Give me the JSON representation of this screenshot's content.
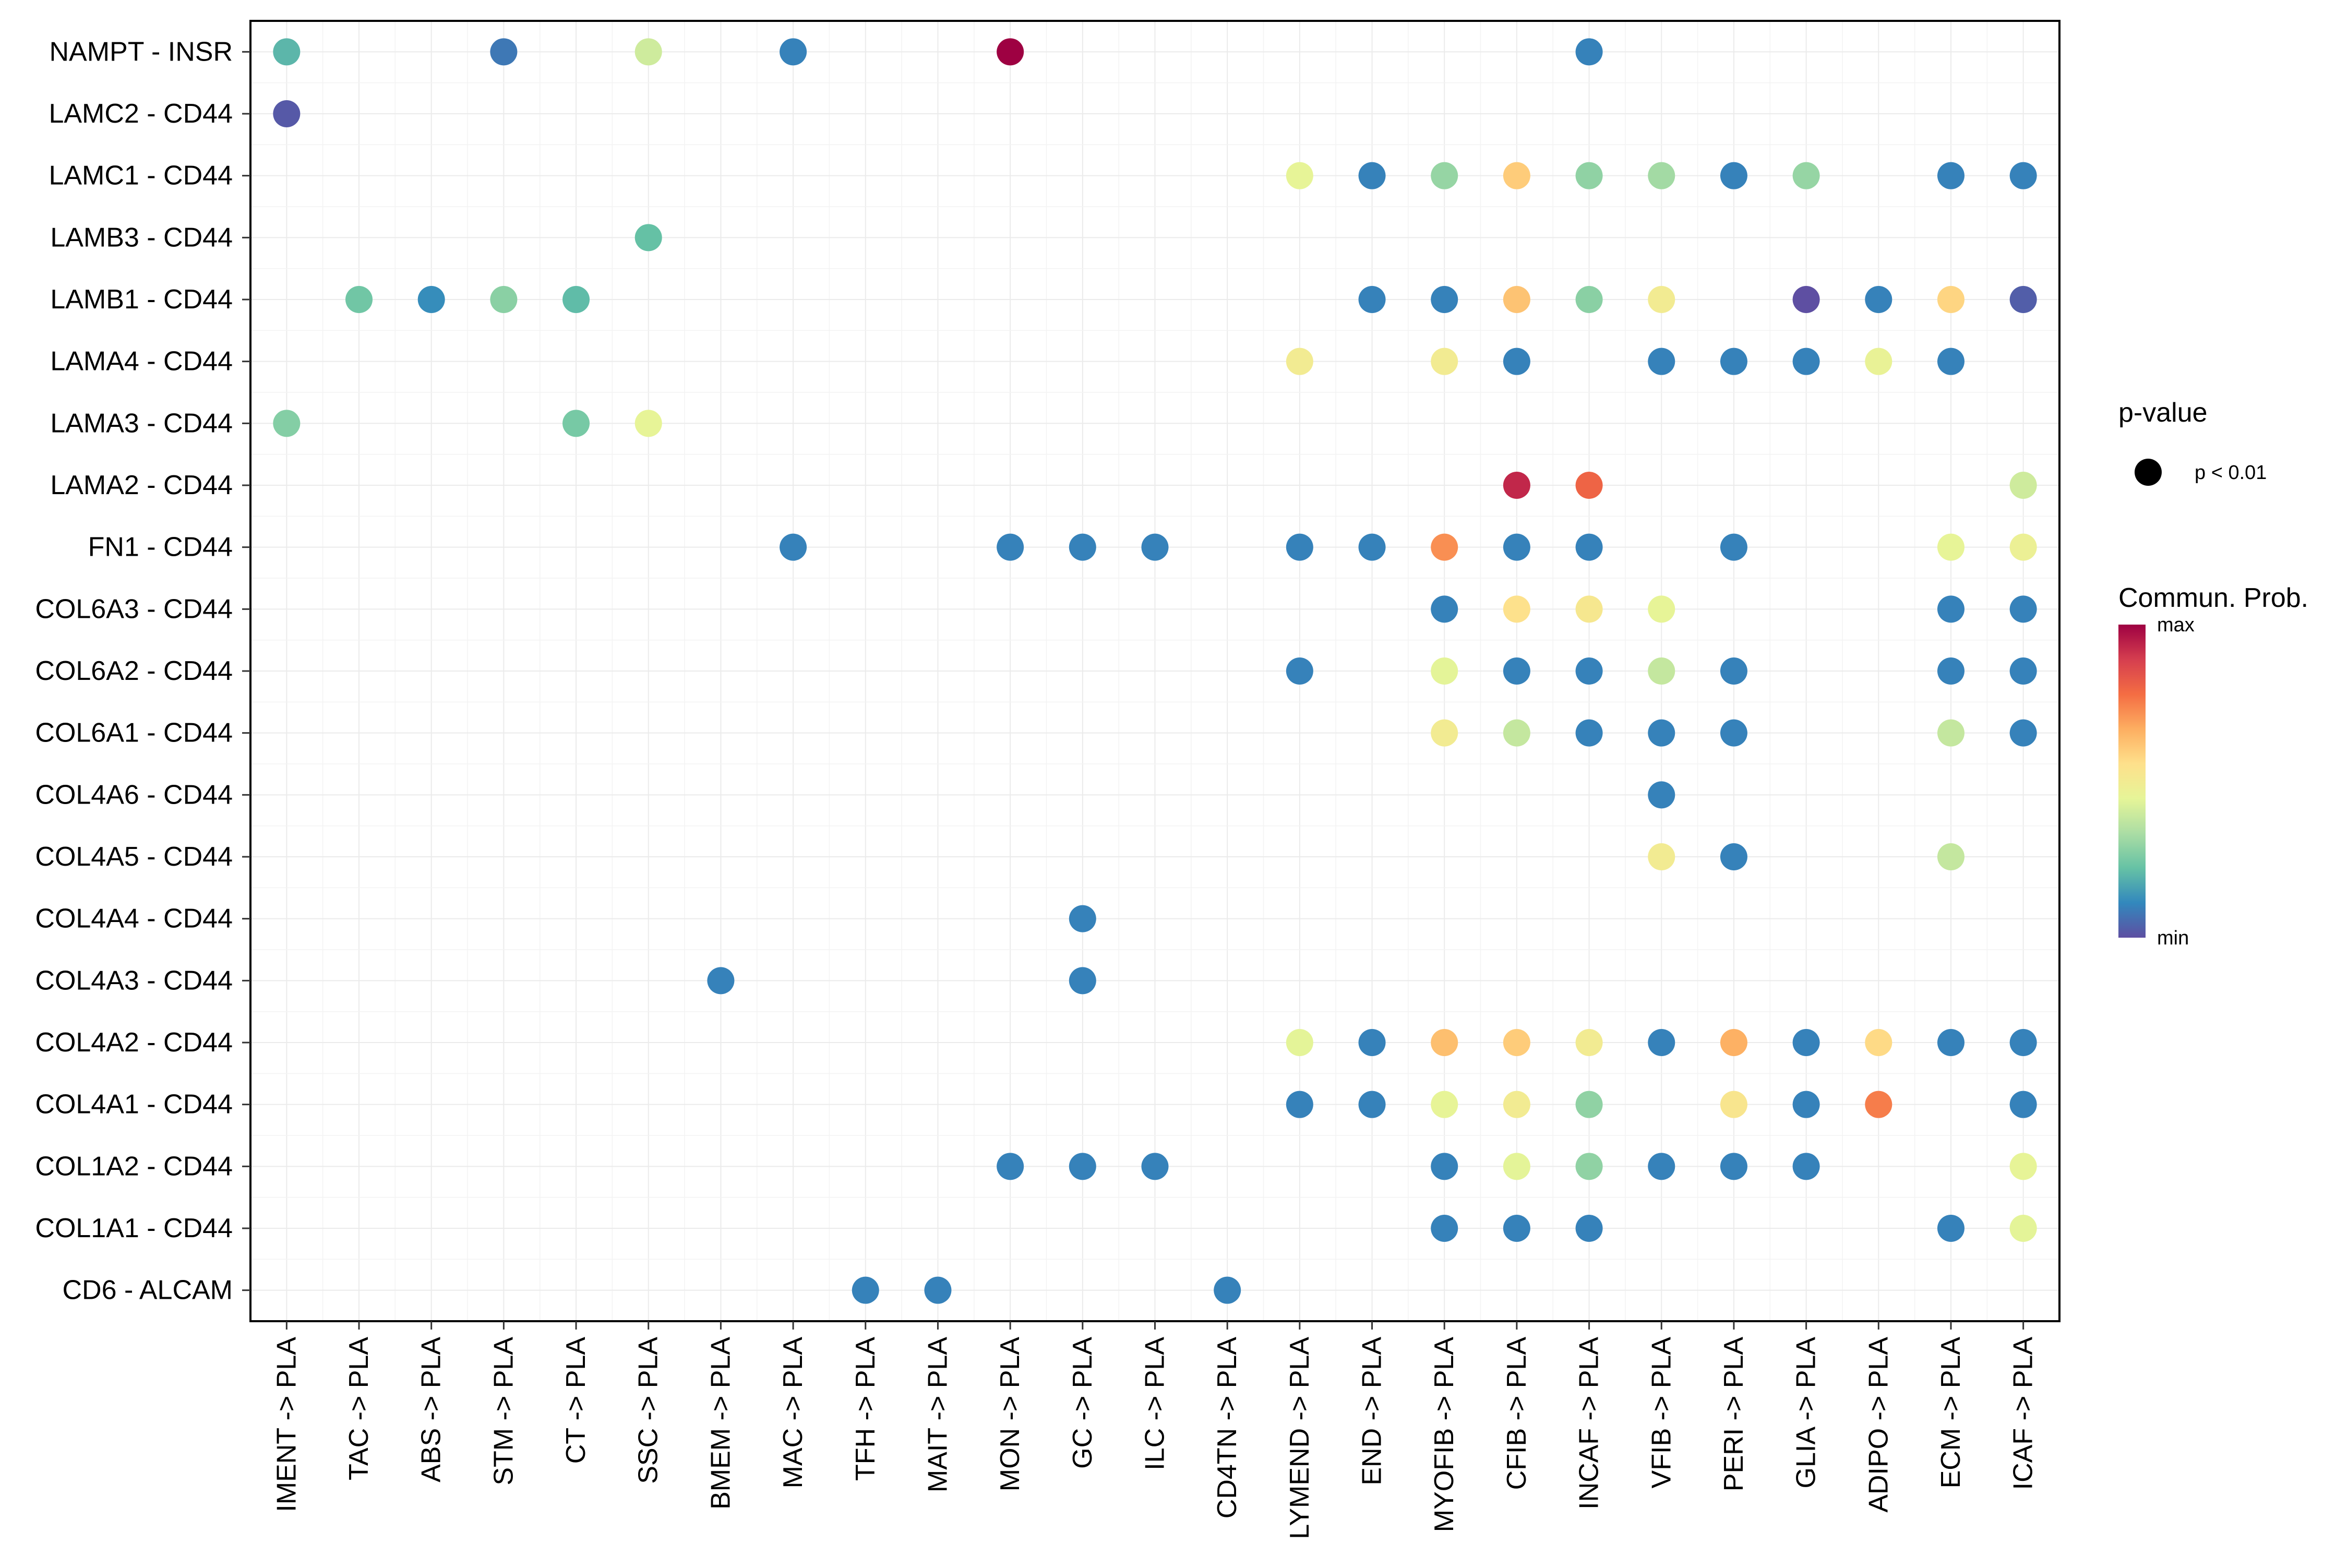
{
  "chart_data": {
    "type": "dot",
    "title": "",
    "xlabel": "",
    "ylabel": "",
    "sources": [
      "IMENT -> PLA",
      "TAC -> PLA",
      "ABS -> PLA",
      "STM -> PLA",
      "CT -> PLA",
      "SSC -> PLA",
      "BMEM -> PLA",
      "MAC -> PLA",
      "TFH -> PLA",
      "MAIT -> PLA",
      "MON -> PLA",
      "GC -> PLA",
      "ILC -> PLA",
      "CD4TN -> PLA",
      "LYMEND -> PLA",
      "END -> PLA",
      "MYOFIB -> PLA",
      "CFIB -> PLA",
      "INCAF -> PLA",
      "VFIB -> PLA",
      "PERI -> PLA",
      "GLIA -> PLA",
      "ADIPO -> PLA",
      "ECM -> PLA",
      "ICAF -> PLA"
    ],
    "pairs": [
      "NAMPT - INSR",
      "LAMC2 - CD44",
      "LAMC1 - CD44",
      "LAMB3 - CD44",
      "LAMB1 - CD44",
      "LAMA4 - CD44",
      "LAMA3 - CD44",
      "LAMA2 - CD44",
      "FN1 - CD44",
      "COL6A3 - CD44",
      "COL6A2 - CD44",
      "COL6A1 - CD44",
      "COL4A6 - CD44",
      "COL4A5 - CD44",
      "COL4A4 - CD44",
      "COL4A3 - CD44",
      "COL4A2 - CD44",
      "COL4A1 - CD44",
      "COL1A2 - CD44",
      "COL1A1 - CD44",
      "CD6 - ALCAM"
    ],
    "points": [
      {
        "pair": "NAMPT - INSR",
        "source": "IMENT -> PLA",
        "prob": 0.2
      },
      {
        "pair": "NAMPT - INSR",
        "source": "STM -> PLA",
        "prob": 0.08
      },
      {
        "pair": "NAMPT - INSR",
        "source": "SSC -> PLA",
        "prob": 0.4
      },
      {
        "pair": "NAMPT - INSR",
        "source": "MAC -> PLA",
        "prob": 0.1
      },
      {
        "pair": "NAMPT - INSR",
        "source": "MON -> PLA",
        "prob": 1.0
      },
      {
        "pair": "NAMPT - INSR",
        "source": "INCAF -> PLA",
        "prob": 0.1
      },
      {
        "pair": "LAMC2 - CD44",
        "source": "IMENT -> PLA",
        "prob": 0.02
      },
      {
        "pair": "LAMC1 - CD44",
        "source": "LYMEND -> PLA",
        "prob": 0.45
      },
      {
        "pair": "LAMC1 - CD44",
        "source": "END -> PLA",
        "prob": 0.1
      },
      {
        "pair": "LAMC1 - CD44",
        "source": "MYOFIB -> PLA",
        "prob": 0.3
      },
      {
        "pair": "LAMC1 - CD44",
        "source": "CFIB -> PLA",
        "prob": 0.6
      },
      {
        "pair": "LAMC1 - CD44",
        "source": "INCAF -> PLA",
        "prob": 0.29
      },
      {
        "pair": "LAMC1 - CD44",
        "source": "VFIB -> PLA",
        "prob": 0.32
      },
      {
        "pair": "LAMC1 - CD44",
        "source": "PERI -> PLA",
        "prob": 0.1
      },
      {
        "pair": "LAMC1 - CD44",
        "source": "GLIA -> PLA",
        "prob": 0.3
      },
      {
        "pair": "LAMC1 - CD44",
        "source": "ECM -> PLA",
        "prob": 0.1
      },
      {
        "pair": "LAMC1 - CD44",
        "source": "ICAF -> PLA",
        "prob": 0.1
      },
      {
        "pair": "LAMB3 - CD44",
        "source": "SSC -> PLA",
        "prob": 0.22
      },
      {
        "pair": "LAMB1 - CD44",
        "source": "TAC -> PLA",
        "prob": 0.24
      },
      {
        "pair": "LAMB1 - CD44",
        "source": "ABS -> PLA",
        "prob": 0.12
      },
      {
        "pair": "LAMB1 - CD44",
        "source": "STM -> PLA",
        "prob": 0.28
      },
      {
        "pair": "LAMB1 - CD44",
        "source": "CT -> PLA",
        "prob": 0.21
      },
      {
        "pair": "LAMB1 - CD44",
        "source": "END -> PLA",
        "prob": 0.1
      },
      {
        "pair": "LAMB1 - CD44",
        "source": "MYOFIB -> PLA",
        "prob": 0.1
      },
      {
        "pair": "LAMB1 - CD44",
        "source": "CFIB -> PLA",
        "prob": 0.62
      },
      {
        "pair": "LAMB1 - CD44",
        "source": "INCAF -> PLA",
        "prob": 0.28
      },
      {
        "pair": "LAMB1 - CD44",
        "source": "VFIB -> PLA",
        "prob": 0.5
      },
      {
        "pair": "LAMB1 - CD44",
        "source": "GLIA -> PLA",
        "prob": 0.0
      },
      {
        "pair": "LAMB1 - CD44",
        "source": "ADIPO -> PLA",
        "prob": 0.1
      },
      {
        "pair": "LAMB1 - CD44",
        "source": "ECM -> PLA",
        "prob": 0.58
      },
      {
        "pair": "LAMB1 - CD44",
        "source": "ICAF -> PLA",
        "prob": 0.03
      },
      {
        "pair": "LAMA4 - CD44",
        "source": "LYMEND -> PLA",
        "prob": 0.5
      },
      {
        "pair": "LAMA4 - CD44",
        "source": "MYOFIB -> PLA",
        "prob": 0.5
      },
      {
        "pair": "LAMA4 - CD44",
        "source": "CFIB -> PLA",
        "prob": 0.1
      },
      {
        "pair": "LAMA4 - CD44",
        "source": "VFIB -> PLA",
        "prob": 0.1
      },
      {
        "pair": "LAMA4 - CD44",
        "source": "PERI -> PLA",
        "prob": 0.1
      },
      {
        "pair": "LAMA4 - CD44",
        "source": "GLIA -> PLA",
        "prob": 0.1
      },
      {
        "pair": "LAMA4 - CD44",
        "source": "ADIPO -> PLA",
        "prob": 0.46
      },
      {
        "pair": "LAMA4 - CD44",
        "source": "ECM -> PLA",
        "prob": 0.1
      },
      {
        "pair": "LAMA3 - CD44",
        "source": "IMENT -> PLA",
        "prob": 0.27
      },
      {
        "pair": "LAMA3 - CD44",
        "source": "CT -> PLA",
        "prob": 0.25
      },
      {
        "pair": "LAMA3 - CD44",
        "source": "SSC -> PLA",
        "prob": 0.45
      },
      {
        "pair": "LAMA2 - CD44",
        "source": "CFIB -> PLA",
        "prob": 0.93
      },
      {
        "pair": "LAMA2 - CD44",
        "source": "INCAF -> PLA",
        "prob": 0.8
      },
      {
        "pair": "LAMA2 - CD44",
        "source": "ICAF -> PLA",
        "prob": 0.4
      },
      {
        "pair": "FN1 - CD44",
        "source": "MAC -> PLA",
        "prob": 0.1
      },
      {
        "pair": "FN1 - CD44",
        "source": "MON -> PLA",
        "prob": 0.1
      },
      {
        "pair": "FN1 - CD44",
        "source": "GC -> PLA",
        "prob": 0.1
      },
      {
        "pair": "FN1 - CD44",
        "source": "ILC -> PLA",
        "prob": 0.1
      },
      {
        "pair": "FN1 - CD44",
        "source": "LYMEND -> PLA",
        "prob": 0.1
      },
      {
        "pair": "FN1 - CD44",
        "source": "END -> PLA",
        "prob": 0.1
      },
      {
        "pair": "FN1 - CD44",
        "source": "MYOFIB -> PLA",
        "prob": 0.72
      },
      {
        "pair": "FN1 - CD44",
        "source": "CFIB -> PLA",
        "prob": 0.1
      },
      {
        "pair": "FN1 - CD44",
        "source": "INCAF -> PLA",
        "prob": 0.1
      },
      {
        "pair": "FN1 - CD44",
        "source": "PERI -> PLA",
        "prob": 0.1
      },
      {
        "pair": "FN1 - CD44",
        "source": "ECM -> PLA",
        "prob": 0.45
      },
      {
        "pair": "FN1 - CD44",
        "source": "ICAF -> PLA",
        "prob": 0.47
      },
      {
        "pair": "COL6A3 - CD44",
        "source": "MYOFIB -> PLA",
        "prob": 0.1
      },
      {
        "pair": "COL6A3 - CD44",
        "source": "CFIB -> PLA",
        "prob": 0.55
      },
      {
        "pair": "COL6A3 - CD44",
        "source": "INCAF -> PLA",
        "prob": 0.52
      },
      {
        "pair": "COL6A3 - CD44",
        "source": "VFIB -> PLA",
        "prob": 0.45
      },
      {
        "pair": "COL6A3 - CD44",
        "source": "ECM -> PLA",
        "prob": 0.1
      },
      {
        "pair": "COL6A3 - CD44",
        "source": "ICAF -> PLA",
        "prob": 0.1
      },
      {
        "pair": "COL6A2 - CD44",
        "source": "LYMEND -> PLA",
        "prob": 0.1
      },
      {
        "pair": "COL6A2 - CD44",
        "source": "MYOFIB -> PLA",
        "prob": 0.44
      },
      {
        "pair": "COL6A2 - CD44",
        "source": "CFIB -> PLA",
        "prob": 0.1
      },
      {
        "pair": "COL6A2 - CD44",
        "source": "INCAF -> PLA",
        "prob": 0.1
      },
      {
        "pair": "COL6A2 - CD44",
        "source": "VFIB -> PLA",
        "prob": 0.38
      },
      {
        "pair": "COL6A2 - CD44",
        "source": "PERI -> PLA",
        "prob": 0.1
      },
      {
        "pair": "COL6A2 - CD44",
        "source": "ECM -> PLA",
        "prob": 0.1
      },
      {
        "pair": "COL6A2 - CD44",
        "source": "ICAF -> PLA",
        "prob": 0.1
      },
      {
        "pair": "COL6A1 - CD44",
        "source": "MYOFIB -> PLA",
        "prob": 0.5
      },
      {
        "pair": "COL6A1 - CD44",
        "source": "CFIB -> PLA",
        "prob": 0.38
      },
      {
        "pair": "COL6A1 - CD44",
        "source": "INCAF -> PLA",
        "prob": 0.1
      },
      {
        "pair": "COL6A1 - CD44",
        "source": "VFIB -> PLA",
        "prob": 0.1
      },
      {
        "pair": "COL6A1 - CD44",
        "source": "PERI -> PLA",
        "prob": 0.1
      },
      {
        "pair": "COL6A1 - CD44",
        "source": "ECM -> PLA",
        "prob": 0.38
      },
      {
        "pair": "COL6A1 - CD44",
        "source": "ICAF -> PLA",
        "prob": 0.1
      },
      {
        "pair": "COL4A6 - CD44",
        "source": "VFIB -> PLA",
        "prob": 0.1
      },
      {
        "pair": "COL4A5 - CD44",
        "source": "VFIB -> PLA",
        "prob": 0.5
      },
      {
        "pair": "COL4A5 - CD44",
        "source": "PERI -> PLA",
        "prob": 0.1
      },
      {
        "pair": "COL4A5 - CD44",
        "source": "ECM -> PLA",
        "prob": 0.38
      },
      {
        "pair": "COL4A4 - CD44",
        "source": "GC -> PLA",
        "prob": 0.1
      },
      {
        "pair": "COL4A3 - CD44",
        "source": "BMEM -> PLA",
        "prob": 0.1
      },
      {
        "pair": "COL4A3 - CD44",
        "source": "GC -> PLA",
        "prob": 0.1
      },
      {
        "pair": "COL4A2 - CD44",
        "source": "LYMEND -> PLA",
        "prob": 0.44
      },
      {
        "pair": "COL4A2 - CD44",
        "source": "END -> PLA",
        "prob": 0.1
      },
      {
        "pair": "COL4A2 - CD44",
        "source": "MYOFIB -> PLA",
        "prob": 0.63
      },
      {
        "pair": "COL4A2 - CD44",
        "source": "CFIB -> PLA",
        "prob": 0.6
      },
      {
        "pair": "COL4A2 - CD44",
        "source": "INCAF -> PLA",
        "prob": 0.5
      },
      {
        "pair": "COL4A2 - CD44",
        "source": "VFIB -> PLA",
        "prob": 0.1
      },
      {
        "pair": "COL4A2 - CD44",
        "source": "PERI -> PLA",
        "prob": 0.66
      },
      {
        "pair": "COL4A2 - CD44",
        "source": "GLIA -> PLA",
        "prob": 0.1
      },
      {
        "pair": "COL4A2 - CD44",
        "source": "ADIPO -> PLA",
        "prob": 0.57
      },
      {
        "pair": "COL4A2 - CD44",
        "source": "ECM -> PLA",
        "prob": 0.1
      },
      {
        "pair": "COL4A2 - CD44",
        "source": "ICAF -> PLA",
        "prob": 0.1
      },
      {
        "pair": "COL4A1 - CD44",
        "source": "LYMEND -> PLA",
        "prob": 0.1
      },
      {
        "pair": "COL4A1 - CD44",
        "source": "END -> PLA",
        "prob": 0.1
      },
      {
        "pair": "COL4A1 - CD44",
        "source": "MYOFIB -> PLA",
        "prob": 0.45
      },
      {
        "pair": "COL4A1 - CD44",
        "source": "CFIB -> PLA",
        "prob": 0.5
      },
      {
        "pair": "COL4A1 - CD44",
        "source": "INCAF -> PLA",
        "prob": 0.29
      },
      {
        "pair": "COL4A1 - CD44",
        "source": "PERI -> PLA",
        "prob": 0.53
      },
      {
        "pair": "COL4A1 - CD44",
        "source": "GLIA -> PLA",
        "prob": 0.1
      },
      {
        "pair": "COL4A1 - CD44",
        "source": "ADIPO -> PLA",
        "prob": 0.75
      },
      {
        "pair": "COL4A1 - CD44",
        "source": "ICAF -> PLA",
        "prob": 0.1
      },
      {
        "pair": "COL1A2 - CD44",
        "source": "MON -> PLA",
        "prob": 0.1
      },
      {
        "pair": "COL1A2 - CD44",
        "source": "GC -> PLA",
        "prob": 0.1
      },
      {
        "pair": "COL1A2 - CD44",
        "source": "ILC -> PLA",
        "prob": 0.1
      },
      {
        "pair": "COL1A2 - CD44",
        "source": "MYOFIB -> PLA",
        "prob": 0.1
      },
      {
        "pair": "COL1A2 - CD44",
        "source": "CFIB -> PLA",
        "prob": 0.44
      },
      {
        "pair": "COL1A2 - CD44",
        "source": "INCAF -> PLA",
        "prob": 0.29
      },
      {
        "pair": "COL1A2 - CD44",
        "source": "VFIB -> PLA",
        "prob": 0.1
      },
      {
        "pair": "COL1A2 - CD44",
        "source": "PERI -> PLA",
        "prob": 0.1
      },
      {
        "pair": "COL1A2 - CD44",
        "source": "GLIA -> PLA",
        "prob": 0.1
      },
      {
        "pair": "COL1A2 - CD44",
        "source": "ICAF -> PLA",
        "prob": 0.45
      },
      {
        "pair": "COL1A1 - CD44",
        "source": "MYOFIB -> PLA",
        "prob": 0.1
      },
      {
        "pair": "COL1A1 - CD44",
        "source": "CFIB -> PLA",
        "prob": 0.1
      },
      {
        "pair": "COL1A1 - CD44",
        "source": "INCAF -> PLA",
        "prob": 0.1
      },
      {
        "pair": "COL1A1 - CD44",
        "source": "ECM -> PLA",
        "prob": 0.1
      },
      {
        "pair": "COL1A1 - CD44",
        "source": "ICAF -> PLA",
        "prob": 0.44
      },
      {
        "pair": "CD6 - ALCAM",
        "source": "TFH -> PLA",
        "prob": 0.1
      },
      {
        "pair": "CD6 - ALCAM",
        "source": "MAIT -> PLA",
        "prob": 0.1
      },
      {
        "pair": "CD6 - ALCAM",
        "source": "CD4TN -> PLA",
        "prob": 0.1
      }
    ],
    "legend": {
      "pvalue_title": "p-value",
      "pvalue_label": "p < 0.01",
      "prob_title": "Commun. Prob.",
      "max_label": "max",
      "min_label": "min",
      "position": "right"
    },
    "colormap": [
      "#5E4FA2",
      "#3288BD",
      "#66C2A5",
      "#ABDDA4",
      "#E6F598",
      "#FEE08B",
      "#FDAE61",
      "#F46D43",
      "#D53E4F",
      "#9E0142"
    ],
    "grid": true
  }
}
